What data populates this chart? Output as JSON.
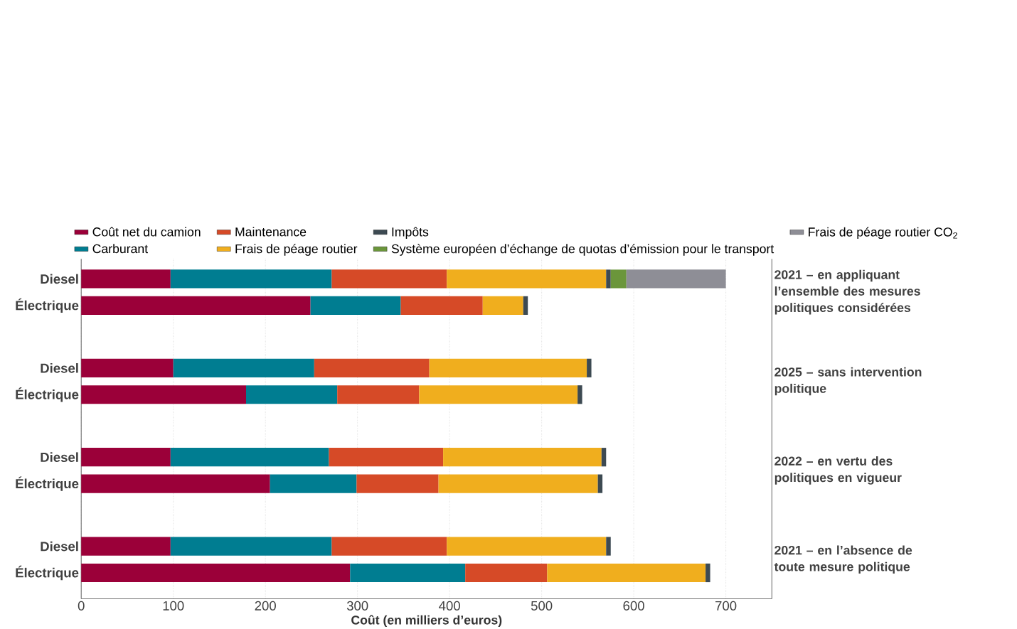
{
  "chart_data": {
    "type": "bar",
    "orientation": "horizontal",
    "stacked": true,
    "categories": [
      "Diesel",
      "Électrique",
      "Diesel",
      "Électrique",
      "Diesel",
      "Électrique",
      "Diesel",
      "Électrique"
    ],
    "series": [
      {
        "name": "Coût net du camion",
        "color": "#9b0039",
        "values": [
          97,
          249,
          100,
          179,
          97,
          205,
          97,
          292
        ]
      },
      {
        "name": "Carburant",
        "color": "#007d91",
        "values": [
          175,
          98,
          153,
          99,
          172,
          94,
          175,
          125
        ]
      },
      {
        "name": "Maintenance",
        "color": "#d64a27",
        "values": [
          125,
          89,
          125,
          89,
          124,
          89,
          125,
          89
        ]
      },
      {
        "name": "Frais de péage routier",
        "color": "#f0ae1e",
        "values": [
          173,
          44,
          171,
          172,
          172,
          173,
          173,
          172
        ]
      },
      {
        "name": "Impôts",
        "color": "#3d4a52",
        "values": [
          5,
          5,
          5,
          5,
          5,
          5,
          5,
          5
        ]
      },
      {
        "name": "Système européen d’échange de quotas d’émission pour le transport",
        "color": "#6b963b",
        "values": [
          17,
          null,
          null,
          null,
          null,
          null,
          null,
          null
        ]
      },
      {
        "name": "Frais de péage routier CO$_{2}$",
        "color": "#8e8e96",
        "values": [
          108,
          null,
          null,
          null,
          null,
          null,
          null,
          null
        ]
      }
    ],
    "xlabel": "Coût (en milliers d’euros)",
    "xlim": [
      0,
      750
    ],
    "xticks": [
      0,
      100,
      200,
      300,
      400,
      500,
      600,
      700
    ],
    "grid": "x",
    "legend": "top",
    "annotations": [
      "2021 – en appliquant l’ensemble des mesures politiques considérées",
      "2025 – sans intervention politique",
      "2022 – en vertu des politiques en vigueur",
      "2021 – en l’absence de toute mesure politique"
    ]
  }
}
